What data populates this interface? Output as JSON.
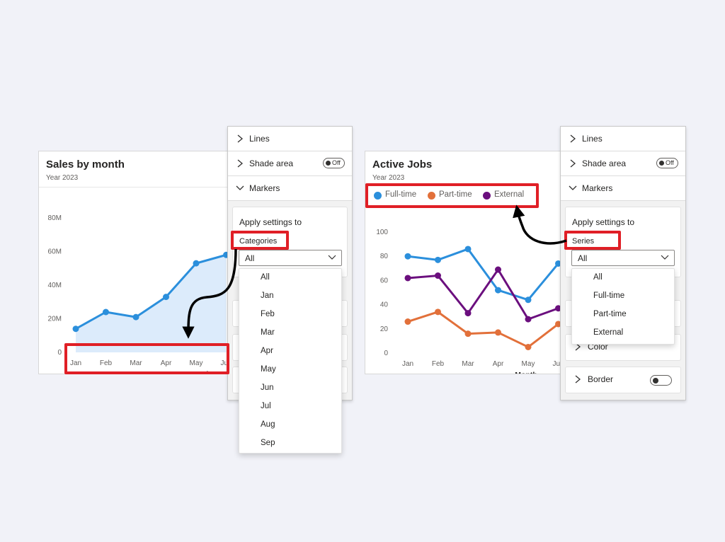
{
  "colors": {
    "blue": "#2b8fdc",
    "area_fill": "#dcebfb",
    "orange": "#e2703a",
    "purple": "#6b0f7e",
    "highlight": "#e01f26",
    "arrow": "#000000"
  },
  "left_chart": {
    "title": "Sales by month",
    "subtitle": "Year 2023",
    "chart_data": {
      "type": "area",
      "title": "Sales by month",
      "subtitle": "Year 2023",
      "xlabel": "Month",
      "ylabel": "",
      "categories": [
        "Jan",
        "Feb",
        "Mar",
        "Apr",
        "May",
        "Jun"
      ],
      "yticks": [
        "0",
        "20M",
        "40M",
        "60M",
        "80M"
      ],
      "ylim": [
        0,
        80
      ],
      "series": [
        {
          "values": [
            14,
            24,
            21,
            33,
            53,
            58
          ]
        }
      ],
      "grid": false,
      "legend": "none"
    }
  },
  "left_panel": {
    "rows": [
      {
        "label": "Lines",
        "state": "collapsed"
      },
      {
        "label": "Shade area",
        "state": "collapsed",
        "toggle": "Off"
      },
      {
        "label": "Markers",
        "state": "expanded"
      }
    ],
    "apply_title": "Apply settings to",
    "apply_label": "Categories",
    "select_value": "All",
    "options": [
      "All",
      "Jan",
      "Feb",
      "Mar",
      "Apr",
      "May",
      "Jun",
      "Jul",
      "Aug",
      "Sep"
    ]
  },
  "right_chart": {
    "title": "Active Jobs",
    "subtitle": "Year 2023",
    "legend": [
      "Full-time",
      "Part-time",
      "External"
    ],
    "chart_data": {
      "type": "line",
      "title": "Active Jobs",
      "subtitle": "Year 2023",
      "xlabel": "Month",
      "ylabel": "",
      "categories": [
        "Jan",
        "Feb",
        "Mar",
        "Apr",
        "May",
        "Jun"
      ],
      "yticks": [
        "0",
        "20",
        "40",
        "60",
        "80",
        "100"
      ],
      "ylim": [
        0,
        100
      ],
      "series": [
        {
          "name": "Full-time",
          "values": [
            80,
            77,
            86,
            52,
            44,
            74
          ]
        },
        {
          "name": "Part-time",
          "values": [
            26,
            34,
            16,
            17,
            5,
            24
          ]
        },
        {
          "name": "External",
          "values": [
            62,
            64,
            33,
            69,
            28,
            37
          ]
        }
      ],
      "grid": false,
      "legend": "top-left"
    }
  },
  "right_panel": {
    "rows": [
      {
        "label": "Lines",
        "state": "collapsed"
      },
      {
        "label": "Shade area",
        "state": "collapsed",
        "toggle": "Off"
      },
      {
        "label": "Markers",
        "state": "expanded"
      }
    ],
    "apply_title": "Apply settings to",
    "apply_label": "Series",
    "select_value": "All",
    "options": [
      "All",
      "Full-time",
      "Part-time",
      "External"
    ],
    "sub_rows": [
      {
        "label": "Color"
      },
      {
        "label": "Border"
      }
    ]
  }
}
